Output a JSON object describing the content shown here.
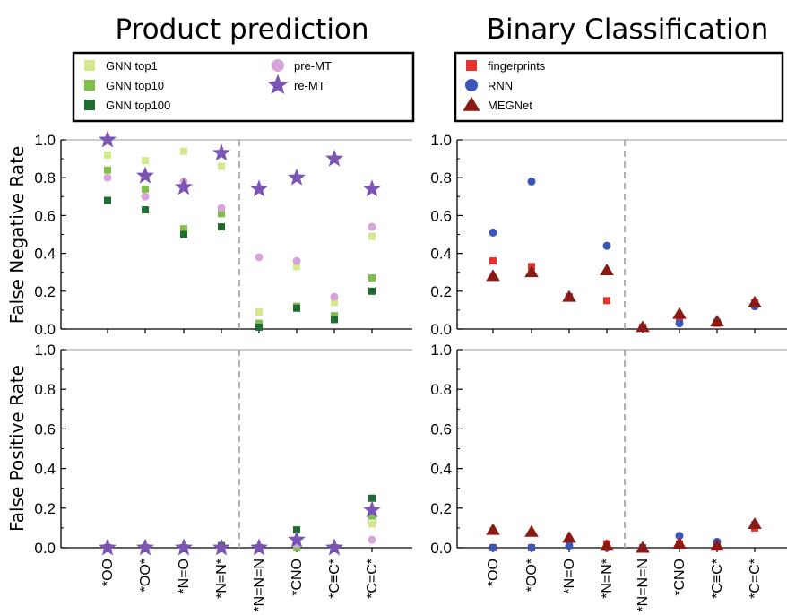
{
  "titles": {
    "left": "Product prediction",
    "right": "Binary Classification"
  },
  "ylabels": {
    "top": "False Negative Rate",
    "bottom": "False Positive Rate"
  },
  "yticks": [
    "0.0",
    "0.2",
    "0.4",
    "0.6",
    "0.8",
    "1.0"
  ],
  "categories": [
    "*OO",
    "*OO*",
    "*N=O",
    "*N=N*",
    "*N=N=N",
    "*CNO",
    "*C≡C*",
    "*C=C*"
  ],
  "legend_left": [
    {
      "name": "GNN top1",
      "marker": "square",
      "color": "#d4e98b"
    },
    {
      "name": "GNN top10",
      "marker": "square",
      "color": "#7fbf4a"
    },
    {
      "name": "GNN top100",
      "marker": "square",
      "color": "#1e6e32"
    },
    {
      "name": "pre-MT",
      "marker": "circle",
      "color": "#d7a4dc"
    },
    {
      "name": "re-MT",
      "marker": "star",
      "color": "#7b55b3"
    }
  ],
  "legend_right": [
    {
      "name": "fingerprints",
      "marker": "square",
      "color": "#e8332c"
    },
    {
      "name": "RNN",
      "marker": "circle",
      "color": "#3a57b8"
    },
    {
      "name": "MEGNet",
      "marker": "triangle",
      "color": "#8b1a14"
    }
  ],
  "chart_data": [
    {
      "panel": "product-fnr",
      "type": "scatter",
      "title": "Product prediction",
      "ylabel": "False Negative Rate",
      "ylim": [
        0,
        1.0
      ],
      "categories": [
        "*OO",
        "*OO*",
        "*N=O",
        "*N=N*",
        "*N=N=N",
        "*CNO",
        "*C≡C*",
        "*C=C*"
      ],
      "series": [
        {
          "name": "GNN top1",
          "values": [
            0.92,
            0.89,
            0.94,
            0.86,
            0.09,
            0.33,
            0.14,
            0.49
          ]
        },
        {
          "name": "GNN top10",
          "values": [
            0.84,
            0.74,
            0.53,
            0.61,
            0.03,
            0.12,
            0.07,
            0.27
          ]
        },
        {
          "name": "GNN top100",
          "values": [
            0.68,
            0.63,
            0.5,
            0.54,
            0.01,
            0.11,
            0.05,
            0.2
          ]
        },
        {
          "name": "pre-MT",
          "values": [
            0.8,
            0.7,
            0.78,
            0.64,
            0.38,
            0.36,
            0.17,
            0.54
          ]
        },
        {
          "name": "re-MT",
          "values": [
            1.0,
            0.81,
            0.75,
            0.93,
            0.74,
            0.8,
            0.9,
            0.74
          ]
        }
      ]
    },
    {
      "panel": "product-fpr",
      "type": "scatter",
      "ylabel": "False Positive Rate",
      "ylim": [
        0,
        1.0
      ],
      "categories": [
        "*OO",
        "*OO*",
        "*N=O",
        "*N=N*",
        "*N=N=N",
        "*CNO",
        "*C≡C*",
        "*C=C*"
      ],
      "series": [
        {
          "name": "GNN top1",
          "values": [
            0.0,
            0.0,
            0.0,
            0.0,
            0.0,
            0.0,
            0.0,
            0.12
          ]
        },
        {
          "name": "GNN top10",
          "values": [
            0.0,
            0.0,
            0.0,
            0.01,
            0.0,
            0.0,
            0.0,
            0.16
          ]
        },
        {
          "name": "GNN top100",
          "values": [
            0.0,
            0.0,
            0.0,
            0.01,
            0.0,
            0.09,
            0.0,
            0.25
          ]
        },
        {
          "name": "pre-MT",
          "values": [
            0.0,
            0.0,
            0.0,
            0.0,
            0.0,
            0.02,
            0.0,
            0.04
          ]
        },
        {
          "name": "re-MT",
          "values": [
            0.0,
            0.0,
            0.0,
            0.0,
            0.0,
            0.04,
            0.0,
            0.19
          ]
        }
      ]
    },
    {
      "panel": "binary-fnr",
      "type": "scatter",
      "title": "Binary Classification",
      "ylim": [
        0,
        1.0
      ],
      "categories": [
        "*OO",
        "*OO*",
        "*N=O",
        "*N=N*",
        "*N=N=N",
        "*CNO",
        "*C≡C*",
        "*C=C*"
      ],
      "series": [
        {
          "name": "fingerprints",
          "values": [
            0.36,
            0.33,
            0.17,
            0.15,
            0.01,
            0.05,
            0.03,
            0.14
          ]
        },
        {
          "name": "RNN",
          "values": [
            0.51,
            0.78,
            0.17,
            0.44,
            0.01,
            0.03,
            0.04,
            0.12
          ]
        },
        {
          "name": "MEGNet",
          "values": [
            0.28,
            0.3,
            0.17,
            0.31,
            0.01,
            0.08,
            0.04,
            0.14
          ]
        }
      ]
    },
    {
      "panel": "binary-fpr",
      "type": "scatter",
      "ylim": [
        0,
        1.0
      ],
      "categories": [
        "*OO",
        "*OO*",
        "*N=O",
        "*N=N*",
        "*N=N=N",
        "*CNO",
        "*C≡C*",
        "*C=C*"
      ],
      "series": [
        {
          "name": "fingerprints",
          "values": [
            0.0,
            0.0,
            0.03,
            0.02,
            0.0,
            0.02,
            0.02,
            0.1
          ]
        },
        {
          "name": "RNN",
          "values": [
            0.0,
            0.0,
            0.01,
            0.0,
            0.0,
            0.06,
            0.03,
            0.12
          ]
        },
        {
          "name": "MEGNet",
          "values": [
            0.09,
            0.08,
            0.05,
            0.01,
            0.0,
            0.02,
            0.01,
            0.12
          ]
        }
      ]
    }
  ]
}
